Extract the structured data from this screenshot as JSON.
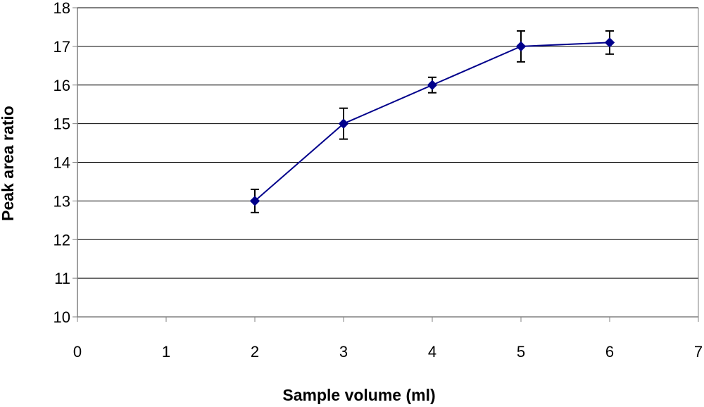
{
  "chart_data": {
    "type": "line",
    "title": "",
    "xlabel": "Sample volume (ml)",
    "ylabel": "Peak area ratio",
    "xlim": [
      0,
      7
    ],
    "ylim": [
      10,
      18
    ],
    "x_ticks": [
      "0",
      "1",
      "2",
      "3",
      "4",
      "5",
      "6",
      "7"
    ],
    "y_ticks": [
      "10",
      "11",
      "12",
      "13",
      "14",
      "15",
      "16",
      "17",
      "18"
    ],
    "grid": "horizontal",
    "legend": "none",
    "series": [
      {
        "x": [
          2,
          3,
          4,
          5,
          6
        ],
        "y": [
          13,
          15,
          16,
          17,
          17.1
        ],
        "error": [
          0.3,
          0.4,
          0.2,
          0.4,
          0.3
        ],
        "marker": "diamond"
      }
    ],
    "colors": {
      "series": "#00008B",
      "error_bar": "#000000",
      "grid": "#000000",
      "axis": "#808080"
    }
  }
}
